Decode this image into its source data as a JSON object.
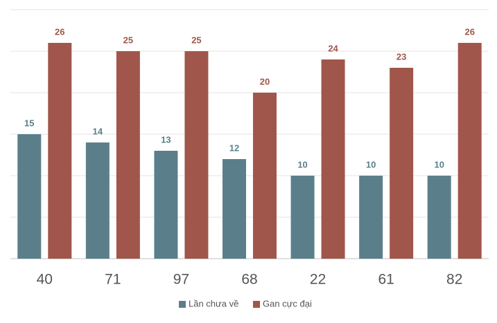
{
  "chart_data": {
    "type": "bar",
    "categories": [
      "40",
      "71",
      "97",
      "68",
      "22",
      "61",
      "82"
    ],
    "series": [
      {
        "name": "Lần chưa về",
        "color": "#5b7f8a",
        "values": [
          15,
          14,
          13,
          12,
          10,
          10,
          10
        ]
      },
      {
        "name": "Gan cực đại",
        "color": "#a0564a",
        "values": [
          26,
          25,
          25,
          20,
          24,
          23,
          26
        ]
      }
    ],
    "ylim": [
      0,
      30
    ],
    "yticks": [
      0,
      5,
      10,
      15,
      20,
      25,
      30
    ],
    "grid": true,
    "legend": "bottom"
  }
}
